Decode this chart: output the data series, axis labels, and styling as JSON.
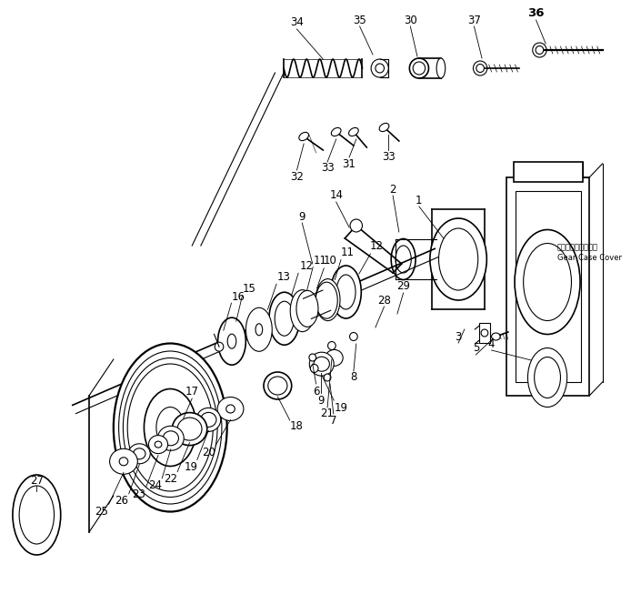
{
  "background_color": "#ffffff",
  "line_color": "#000000",
  "label_fontsize": 8.5,
  "label_fontsize_bold": 9.5,
  "annotations": {
    "gear_case_jp": "ギヤーケースカバー",
    "gear_case_en": "Gear Case Cover"
  }
}
